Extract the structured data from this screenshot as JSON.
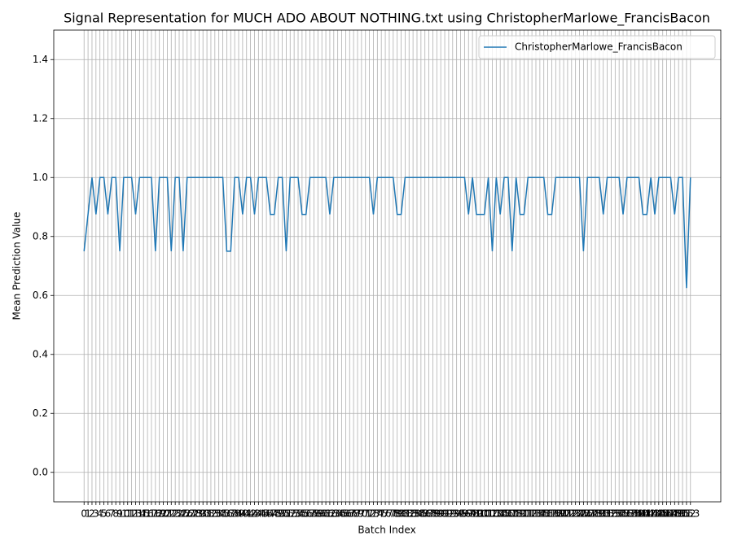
{
  "chart_data": {
    "type": "line",
    "title": "Signal Representation for MUCH ADO ABOUT NOTHING.txt using ChristopherMarlowe_FrancisBacon",
    "x_label": "Batch Index",
    "y_label": "Mean Prediction Value",
    "categories": [
      "0",
      "1",
      "2",
      "3",
      "4",
      "5",
      "6",
      "7",
      "8",
      "9",
      "10",
      "11",
      "12",
      "13",
      "14",
      "15",
      "16",
      "17",
      "18",
      "19",
      "20",
      "21",
      "22",
      "23",
      "24",
      "25",
      "26",
      "27",
      "28",
      "29",
      "30",
      "31",
      "32",
      "33",
      "34",
      "35",
      "36",
      "37",
      "38",
      "39",
      "40",
      "41",
      "42",
      "43",
      "44",
      "45",
      "46",
      "47",
      "48",
      "49",
      "50",
      "51",
      "52",
      "53",
      "54",
      "55",
      "56",
      "57",
      "58",
      "59",
      "60",
      "61",
      "62",
      "63",
      "64",
      "65",
      "66",
      "67",
      "68",
      "69",
      "70",
      "71",
      "72",
      "73",
      "74",
      "75",
      "76",
      "77",
      "78",
      "79",
      "80",
      "81",
      "82",
      "83",
      "84",
      "85",
      "86",
      "87",
      "88",
      "89",
      "90",
      "91",
      "92",
      "93",
      "94",
      "95",
      "96",
      "97",
      "98",
      "99",
      "100",
      "101",
      "102",
      "103",
      "104",
      "105",
      "106",
      "107",
      "108",
      "109",
      "110",
      "111",
      "112",
      "113",
      "114",
      "115",
      "116",
      "117",
      "118",
      "119",
      "120",
      "121",
      "122",
      "123",
      "124",
      "125",
      "126",
      "127",
      "128",
      "129",
      "130",
      "131",
      "132",
      "133",
      "134",
      "135",
      "136",
      "137",
      "138",
      "139",
      "140",
      "141",
      "142",
      "143",
      "144",
      "145",
      "146",
      "147",
      "148",
      "149",
      "150",
      "151",
      "152",
      "153"
    ],
    "series": [
      {
        "name": "ChristopherMarlowe_FrancisBacon",
        "color": "#1f77b4",
        "values": [
          0.75,
          0.875,
          1,
          0.875,
          1,
          1,
          0.875,
          1,
          1,
          0.75,
          1,
          1,
          1,
          0.875,
          1,
          1,
          1,
          1,
          0.75,
          1,
          1,
          1,
          0.75,
          1,
          1,
          0.75,
          1,
          1,
          1,
          1,
          1,
          1,
          1,
          1,
          1,
          1,
          0.75,
          0.75,
          1,
          1,
          0.875,
          1,
          1,
          0.875,
          1,
          1,
          1,
          0.875,
          0.875,
          1,
          1,
          0.75,
          1,
          1,
          1,
          0.875,
          0.875,
          1,
          1,
          1,
          1,
          1,
          0.875,
          1,
          1,
          1,
          1,
          1,
          1,
          1,
          1,
          1,
          1,
          0.875,
          1,
          1,
          1,
          1,
          1,
          0.875,
          0.875,
          1,
          1,
          1,
          1,
          1,
          1,
          1,
          1,
          1,
          1,
          1,
          1,
          1,
          1,
          1,
          1,
          0.875,
          1,
          0.875,
          0.875,
          0.875,
          1,
          0.75,
          1,
          0.875,
          1,
          1,
          0.75,
          1,
          0.875,
          0.875,
          1,
          1,
          1,
          1,
          1,
          0.875,
          0.875,
          1,
          1,
          1,
          1,
          1,
          1,
          1,
          0.75,
          1,
          1,
          1,
          1,
          0.875,
          1,
          1,
          1,
          1,
          0.875,
          1,
          1,
          1,
          1,
          0.875,
          0.875,
          1,
          0.875,
          1,
          1,
          1,
          1,
          0.875,
          1,
          1,
          0.625,
          1
        ]
      }
    ],
    "ylim": [
      -0.1,
      1.5
    ],
    "yticks": [
      {
        "value": 0,
        "label": "0.0"
      },
      {
        "value": 0.2,
        "label": "0.2"
      },
      {
        "value": 0.4,
        "label": "0.4"
      },
      {
        "value": 0.6,
        "label": "0.6"
      },
      {
        "value": 0.8,
        "label": "0.8"
      },
      {
        "value": 1,
        "label": "1.0"
      },
      {
        "value": 1.2,
        "label": "1.2"
      },
      {
        "value": 1.4,
        "label": "1.4"
      }
    ],
    "grid": true,
    "legend": "upper right"
  }
}
